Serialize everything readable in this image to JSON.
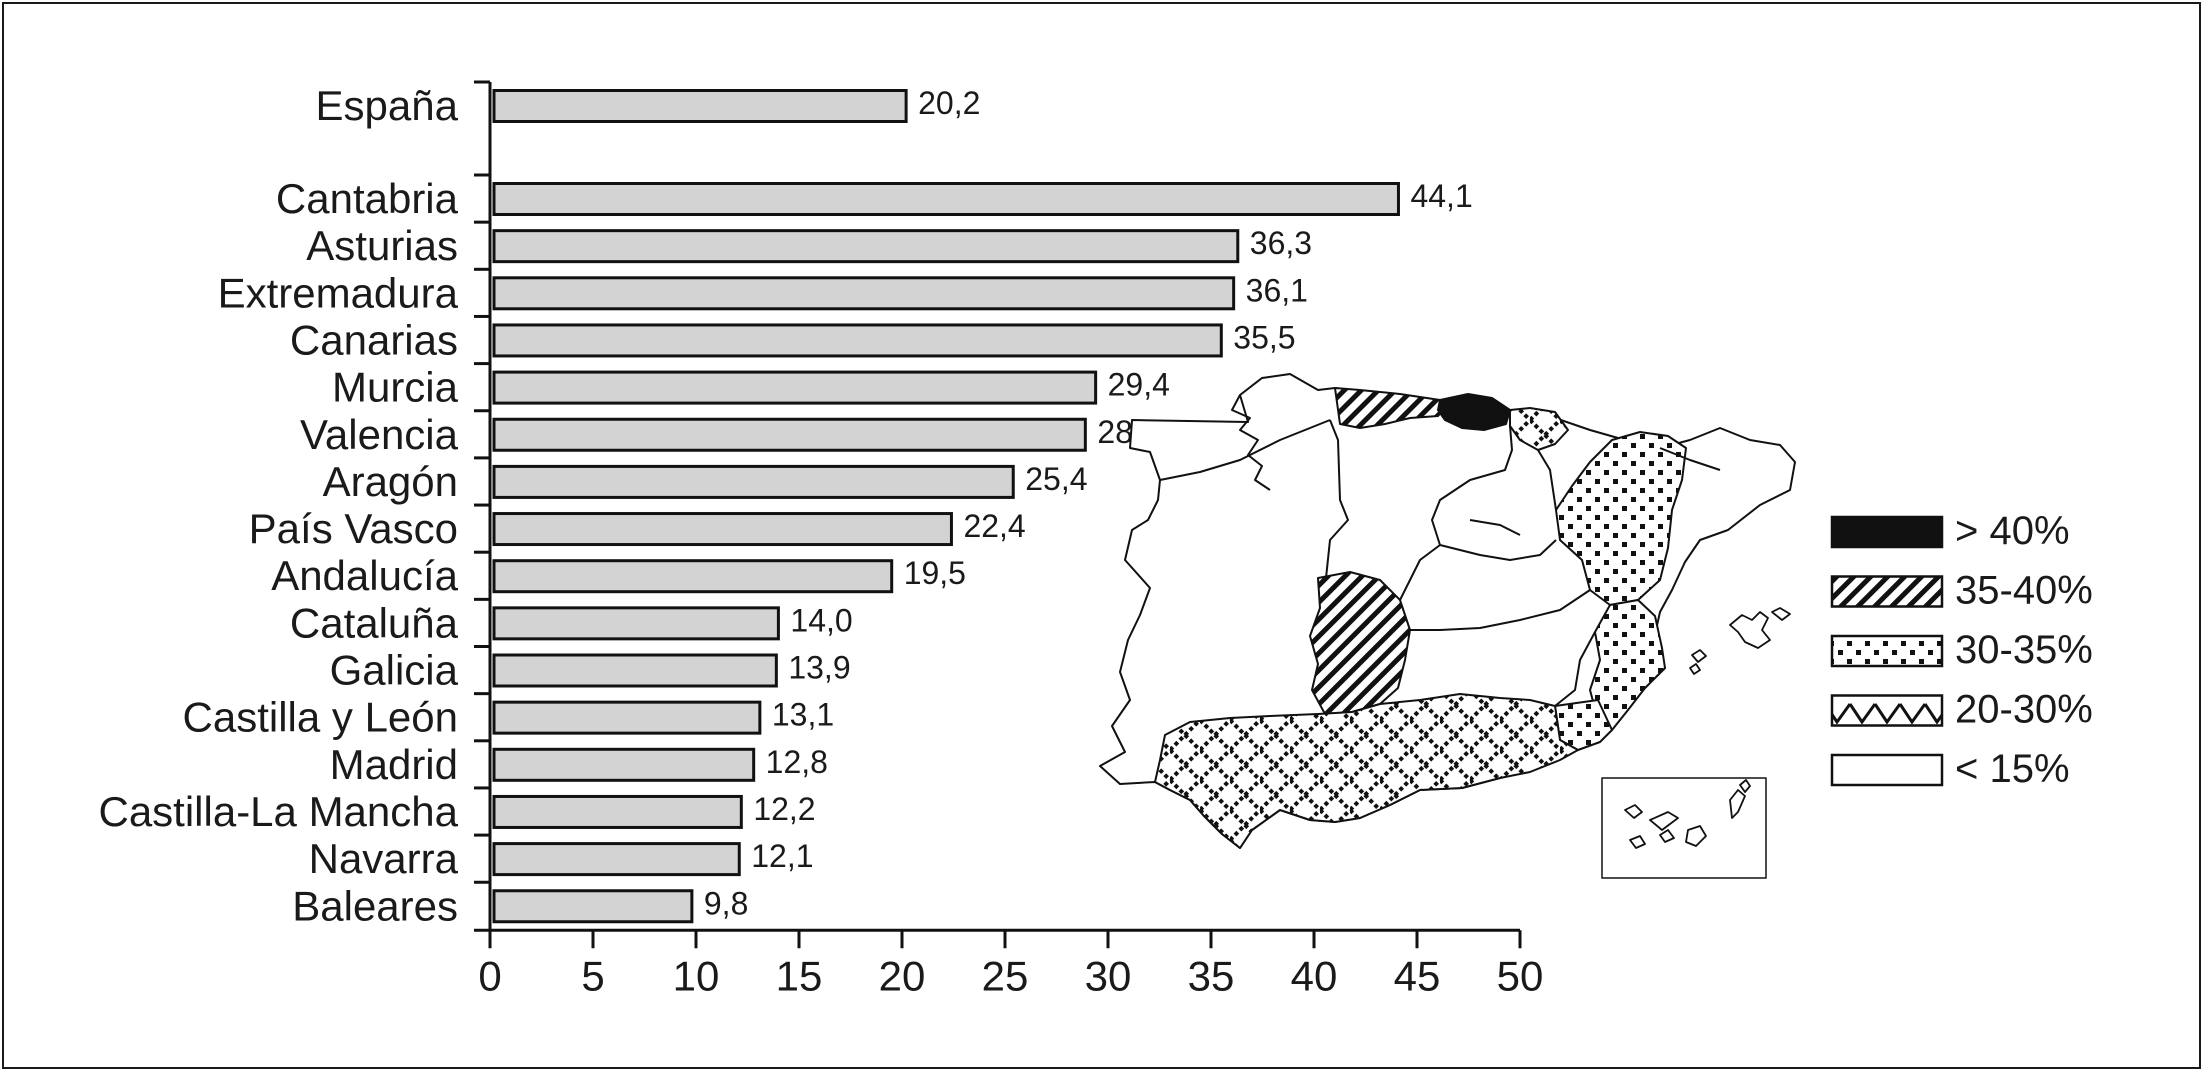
{
  "chart_data": {
    "type": "bar",
    "orientation": "horizontal",
    "categories": [
      "España",
      "Cantabria",
      "Asturias",
      "Extremadura",
      "Canarias",
      "Murcia",
      "Valencia",
      "Aragón",
      "País Vasco",
      "Andalucía",
      "Cataluña",
      "Galicia",
      "Castilla y León",
      "Madrid",
      "Castilla-La Mancha",
      "Navarra",
      "Baleares"
    ],
    "values": [
      20.2,
      44.1,
      36.3,
      36.1,
      35.5,
      29.4,
      28.9,
      25.4,
      22.4,
      19.5,
      14.0,
      13.9,
      13.1,
      12.8,
      12.2,
      12.1,
      9.8
    ],
    "value_labels": [
      "20,2",
      "44,1",
      "36,3",
      "36,1",
      "35,5",
      "29,4",
      "28,9",
      "25,4",
      "22,4",
      "19,5",
      "14,0",
      "13,9",
      "13,1",
      "12,8",
      "12,2",
      "12,1",
      "9,8"
    ],
    "xlim": [
      0,
      50
    ],
    "xticks": [
      0,
      5,
      10,
      15,
      20,
      25,
      30,
      35,
      40,
      45,
      50
    ],
    "bar_color": "#d3d3d3",
    "grid": false
  },
  "map_legend": [
    {
      "label": "> 40%",
      "pattern": "solid"
    },
    {
      "label": "35-40%",
      "pattern": "diagonal"
    },
    {
      "label": "30-35%",
      "pattern": "dots"
    },
    {
      "label": "20-30%",
      "pattern": "zigzag"
    },
    {
      "label": "< 15%",
      "pattern": "blank"
    }
  ]
}
